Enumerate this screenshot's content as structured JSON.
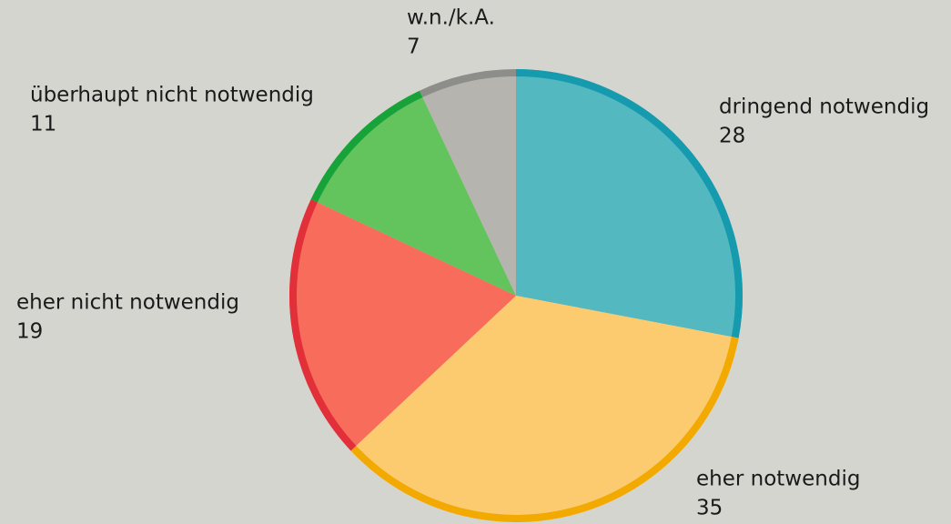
{
  "chart_data": {
    "type": "pie",
    "categories": [
      "dringend notwendig",
      "eher notwendig",
      "eher nicht notwendig",
      "überhaupt nicht notwendig",
      "w.n./k.A."
    ],
    "values": [
      28,
      35,
      19,
      11,
      7
    ],
    "colors": [
      "#53b8c0",
      "#fccb70",
      "#f76c5a",
      "#63c35d",
      "#b6b4af"
    ],
    "rim_colors": [
      "#169bae",
      "#f2a900",
      "#e2303b",
      "#18a33a",
      "#8d8d8a"
    ]
  }
}
